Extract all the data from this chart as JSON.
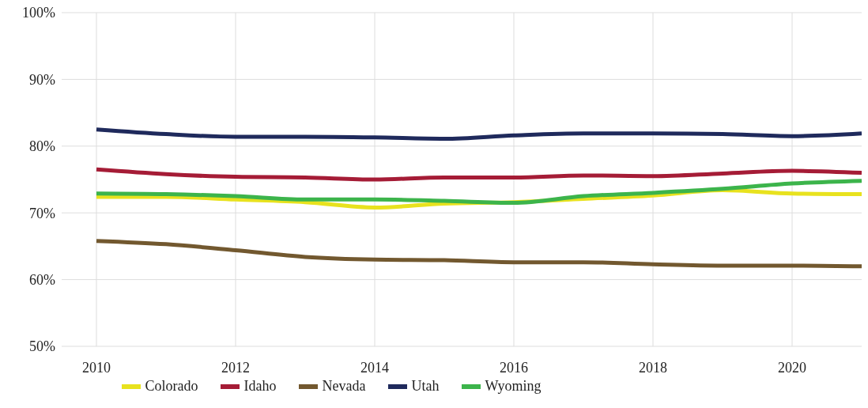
{
  "chart_data": {
    "type": "line",
    "x": [
      2010,
      2011,
      2012,
      2013,
      2014,
      2015,
      2016,
      2017,
      2018,
      2019,
      2020,
      2021
    ],
    "series": [
      {
        "name": "Colorado",
        "color": "#e8e21e",
        "values": [
          72.4,
          72.4,
          72,
          71.6,
          70.8,
          71.4,
          71.6,
          72.1,
          72.6,
          73.4,
          72.9,
          72.8
        ]
      },
      {
        "name": "Idaho",
        "color": "#a51c36",
        "values": [
          76.5,
          75.8,
          75.4,
          75.3,
          75,
          75.3,
          75.3,
          75.6,
          75.5,
          75.9,
          76.3,
          76
        ]
      },
      {
        "name": "Nevada",
        "color": "#72582f",
        "values": [
          65.8,
          65.3,
          64.4,
          63.4,
          63,
          62.9,
          62.6,
          62.6,
          62.3,
          62.1,
          62.1,
          62
        ]
      },
      {
        "name": "Utah",
        "color": "#1f2a5c",
        "values": [
          82.5,
          81.8,
          81.4,
          81.4,
          81.3,
          81.1,
          81.6,
          81.9,
          81.9,
          81.8,
          81.5,
          81.9
        ]
      },
      {
        "name": "Wyoming",
        "color": "#3cb44b",
        "values": [
          72.9,
          72.8,
          72.5,
          72,
          72,
          71.8,
          71.5,
          72.5,
          73,
          73.6,
          74.4,
          74.8
        ]
      }
    ],
    "xlim": [
      2009.5,
      2021
    ],
    "xticks": [
      2010,
      2012,
      2014,
      2016,
      2018,
      2020
    ],
    "ylim": [
      50,
      100
    ],
    "yticks": [
      {
        "value": 50,
        "label": "50%"
      },
      {
        "value": 60,
        "label": "60%"
      },
      {
        "value": 70,
        "label": "70%"
      },
      {
        "value": 80,
        "label": "80%"
      },
      {
        "value": 90,
        "label": "90%"
      },
      {
        "value": 100,
        "label": "100%"
      }
    ],
    "grid": true,
    "legend": "bottom",
    "marker": "none",
    "line_style": "solid"
  }
}
